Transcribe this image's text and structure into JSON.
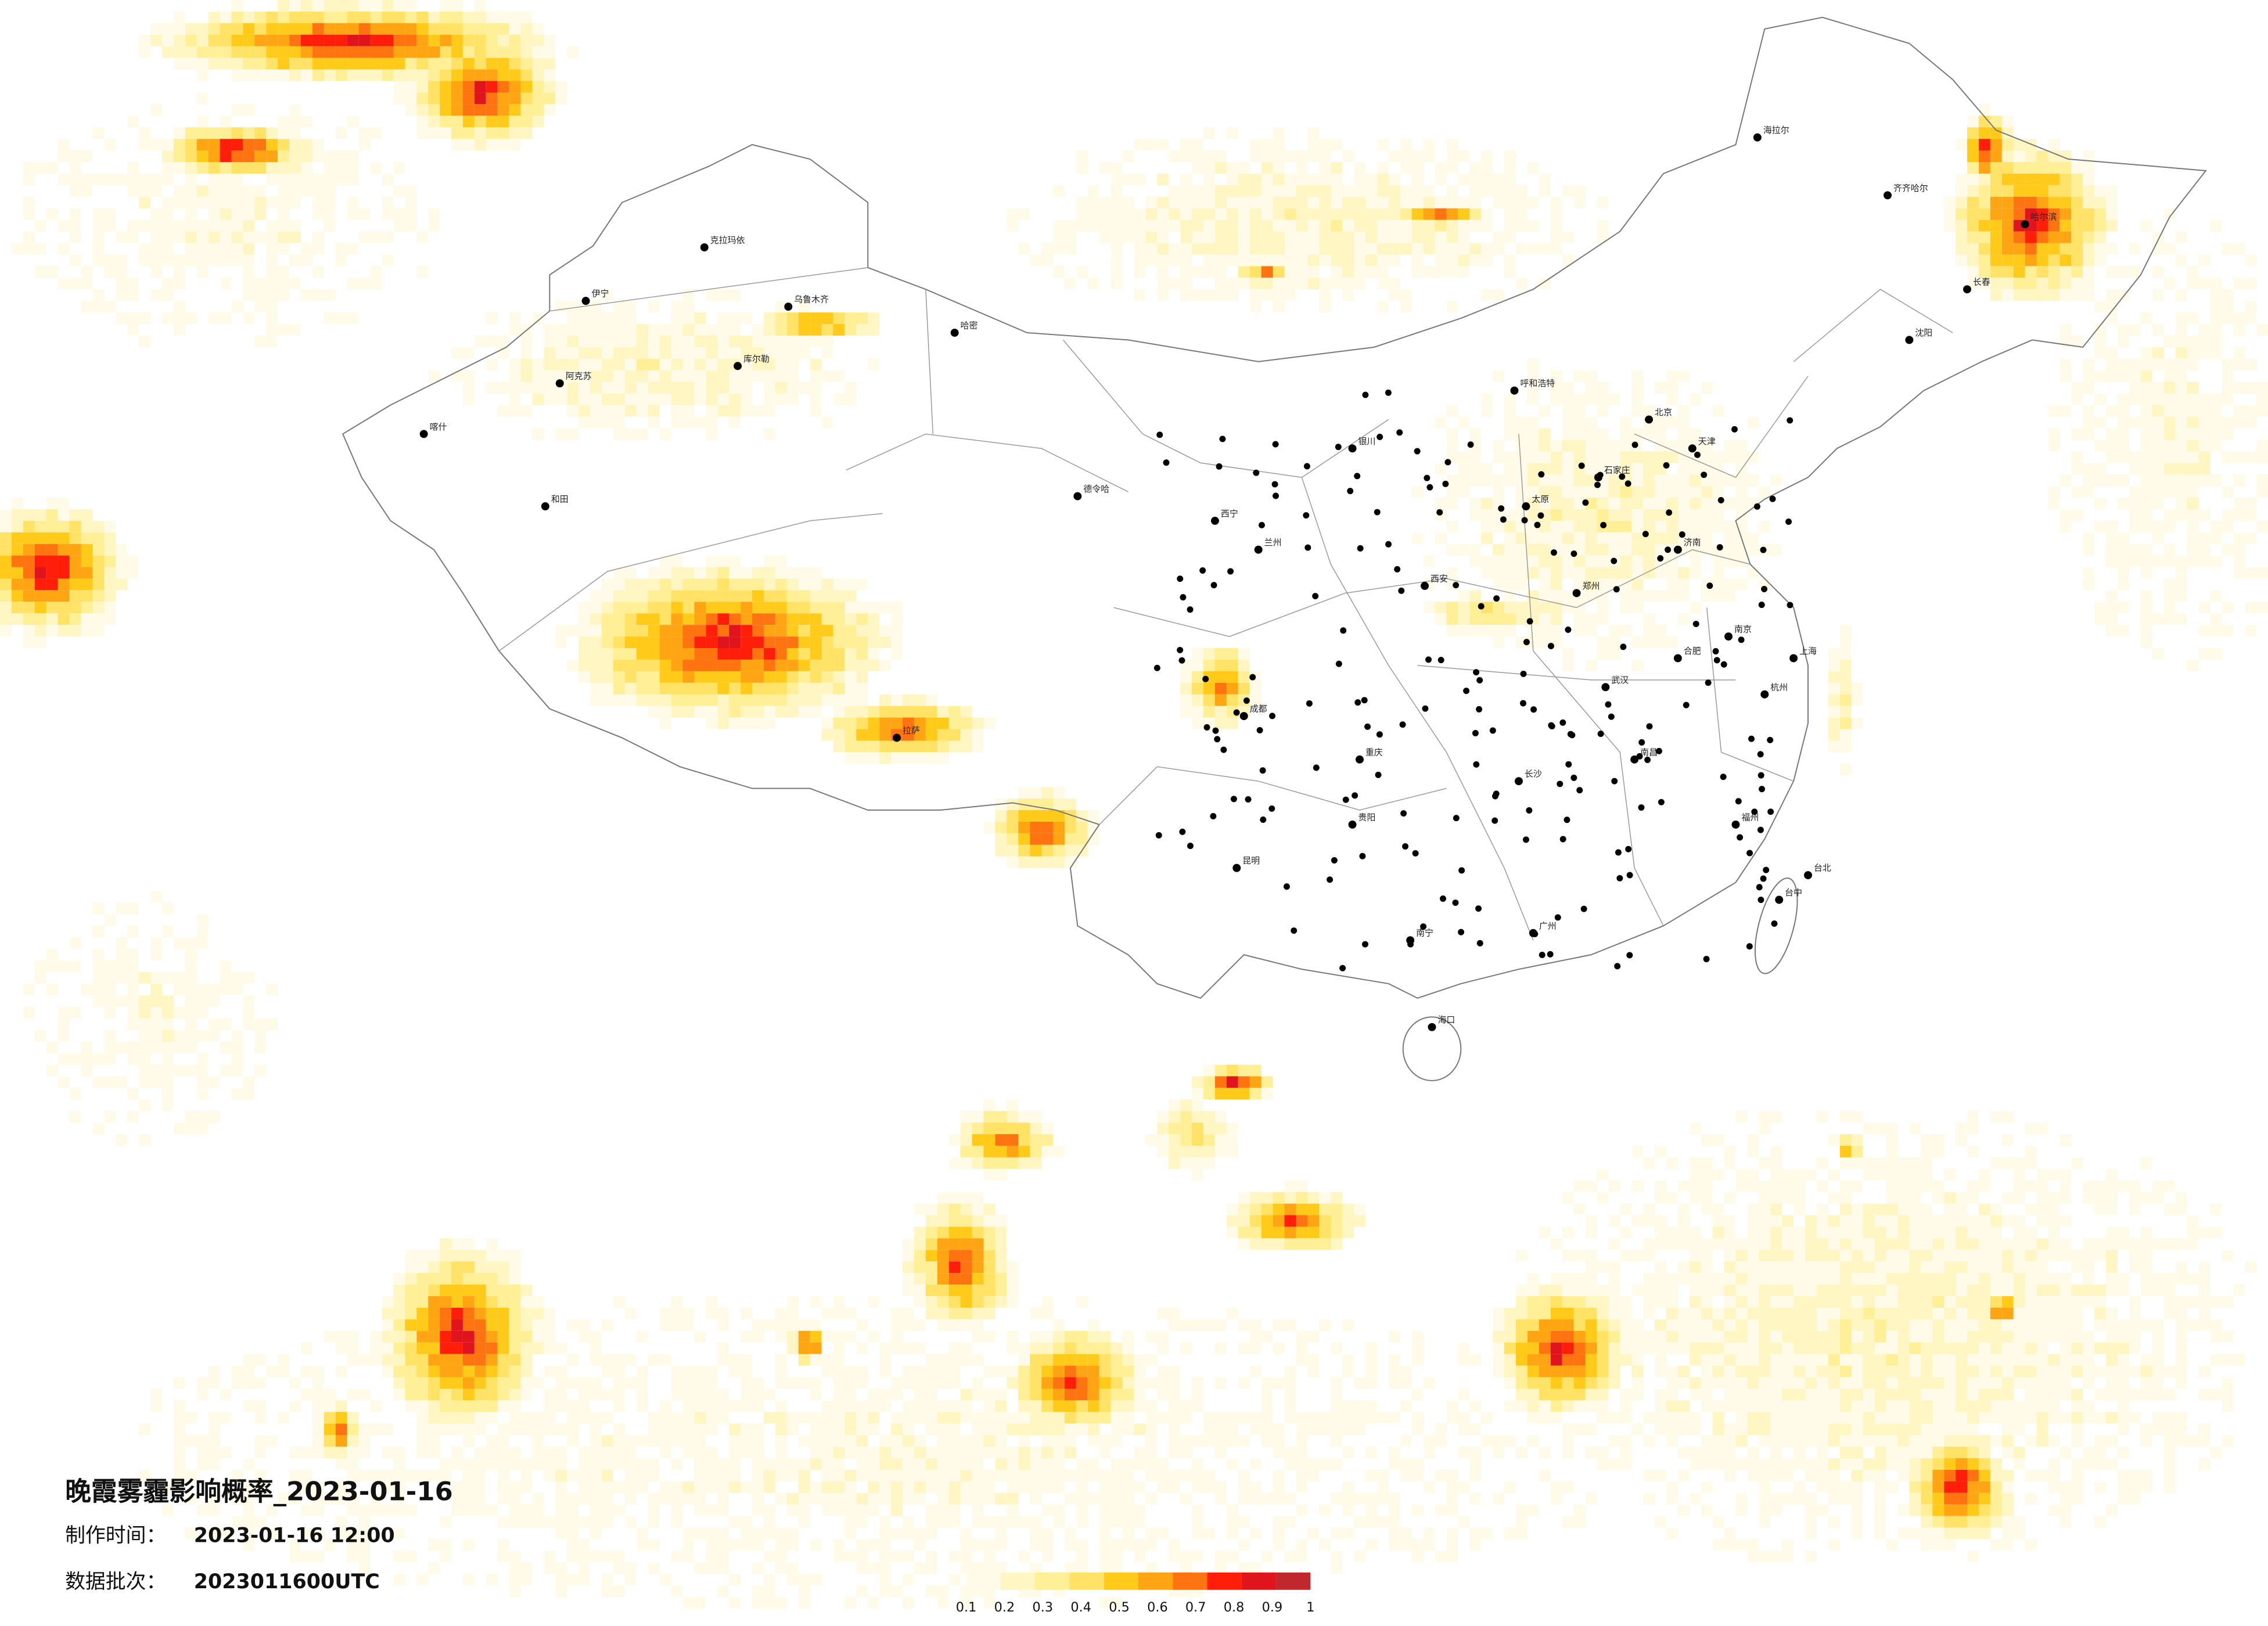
{
  "title": "晚霞雾霾影响概率_2023-01-16",
  "production_time": {
    "label": "制作时间：",
    "value": "2023-01-16 12:00"
  },
  "data_batch": {
    "label": "数据批次：",
    "value": "2023011600UTC"
  },
  "legend": {
    "ticks": [
      0.1,
      0.2,
      0.3,
      0.4,
      0.5,
      0.6,
      0.7,
      0.8,
      0.9,
      1
    ],
    "colors": [
      "#fffbe8",
      "#fff6c4",
      "#ffef96",
      "#ffe266",
      "#ffca1a",
      "#ffa412",
      "#ff7410",
      "#ff1e0a",
      "#e0141c",
      "#c0282e"
    ]
  },
  "cities": [
    "克拉玛依",
    "伊宁",
    "乌鲁木齐",
    "哈密",
    "库尔勒",
    "阿克苏",
    "喀什",
    "和田",
    "德令哈",
    "西宁",
    "兰州",
    "银川",
    "呼和浩特",
    "北京",
    "天津",
    "石家庄",
    "太原",
    "济南",
    "郑州",
    "西安",
    "成都",
    "重庆",
    "拉萨",
    "昆明",
    "贵阳",
    "南宁",
    "广州",
    "长沙",
    "武汉",
    "南京",
    "上海",
    "杭州",
    "福州",
    "南昌",
    "合肥",
    "哈尔滨",
    "长春",
    "沈阳",
    "海拉尔",
    "齐齐哈尔",
    "海口",
    "台北",
    "台中"
  ]
}
